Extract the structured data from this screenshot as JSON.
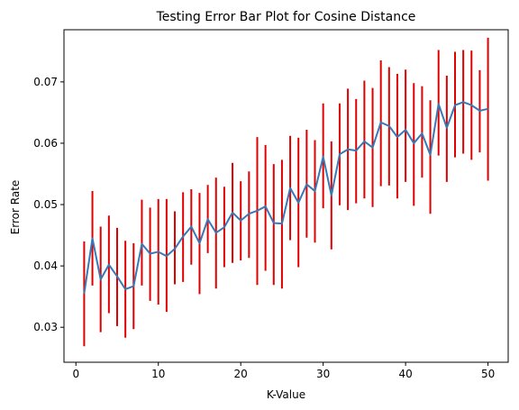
{
  "chart_data": {
    "type": "line",
    "title": "Testing Error Bar Plot for Cosine Distance",
    "xlabel": "K-Value",
    "ylabel": "Error Rate",
    "xlim": [
      -1.45,
      52.45
    ],
    "ylim": [
      0.0243,
      0.0785
    ],
    "xticks": [
      0,
      10,
      20,
      30,
      40,
      50
    ],
    "yticks": [
      0.03,
      0.04,
      0.05,
      0.06,
      0.07
    ],
    "ytick_labels": [
      "0.03",
      "0.04",
      "0.05",
      "0.06",
      "0.07"
    ],
    "grid": false,
    "legend": "none",
    "line_color": "#3a78b5",
    "errorbar_color": "#e00000",
    "x": [
      1,
      2,
      3,
      4,
      5,
      6,
      7,
      8,
      9,
      10,
      11,
      12,
      13,
      14,
      15,
      16,
      17,
      18,
      19,
      20,
      21,
      22,
      23,
      24,
      25,
      26,
      27,
      28,
      29,
      30,
      31,
      32,
      33,
      34,
      35,
      36,
      37,
      38,
      39,
      40,
      41,
      42,
      43,
      44,
      45,
      46,
      47,
      48,
      49,
      50
    ],
    "y": [
      0.0355,
      0.0445,
      0.0378,
      0.0402,
      0.0383,
      0.0362,
      0.0367,
      0.0436,
      0.042,
      0.0423,
      0.0416,
      0.0428,
      0.0448,
      0.0464,
      0.0437,
      0.0476,
      0.0454,
      0.0463,
      0.0487,
      0.0474,
      0.0485,
      0.049,
      0.0497,
      0.047,
      0.0469,
      0.0527,
      0.0503,
      0.0533,
      0.0522,
      0.0578,
      0.0515,
      0.0582,
      0.059,
      0.0588,
      0.0603,
      0.0593,
      0.0634,
      0.0628,
      0.061,
      0.0622,
      0.06,
      0.0616,
      0.0581,
      0.0664,
      0.0625,
      0.0662,
      0.0667,
      0.0662,
      0.0653,
      0.0656
    ],
    "yerr_lower": [
      0.0269,
      0.0368,
      0.0292,
      0.0323,
      0.0302,
      0.0283,
      0.0297,
      0.0368,
      0.0343,
      0.0337,
      0.0325,
      0.037,
      0.0374,
      0.0402,
      0.0354,
      0.0421,
      0.0363,
      0.0398,
      0.0405,
      0.0409,
      0.0413,
      0.0369,
      0.0392,
      0.0369,
      0.0363,
      0.0442,
      0.0398,
      0.0446,
      0.0438,
      0.0494,
      0.0427,
      0.0499,
      0.0491,
      0.0502,
      0.051,
      0.0496,
      0.053,
      0.0531,
      0.051,
      0.0537,
      0.0498,
      0.0544,
      0.0485,
      0.058,
      0.0537,
      0.0577,
      0.0583,
      0.0573,
      0.0585,
      0.0539
    ],
    "yerr_upper": [
      0.044,
      0.0522,
      0.0464,
      0.0482,
      0.0462,
      0.0441,
      0.0437,
      0.0508,
      0.0495,
      0.0509,
      0.0509,
      0.0489,
      0.052,
      0.0525,
      0.0519,
      0.0532,
      0.0544,
      0.0529,
      0.0568,
      0.0538,
      0.0554,
      0.061,
      0.0597,
      0.0566,
      0.0573,
      0.0612,
      0.0609,
      0.0622,
      0.0605,
      0.0665,
      0.0603,
      0.0665,
      0.0689,
      0.0672,
      0.0702,
      0.069,
      0.0735,
      0.0724,
      0.0713,
      0.072,
      0.0698,
      0.0693,
      0.067,
      0.0752,
      0.071,
      0.0749,
      0.0752,
      0.0751,
      0.0719,
      0.0772
    ]
  }
}
